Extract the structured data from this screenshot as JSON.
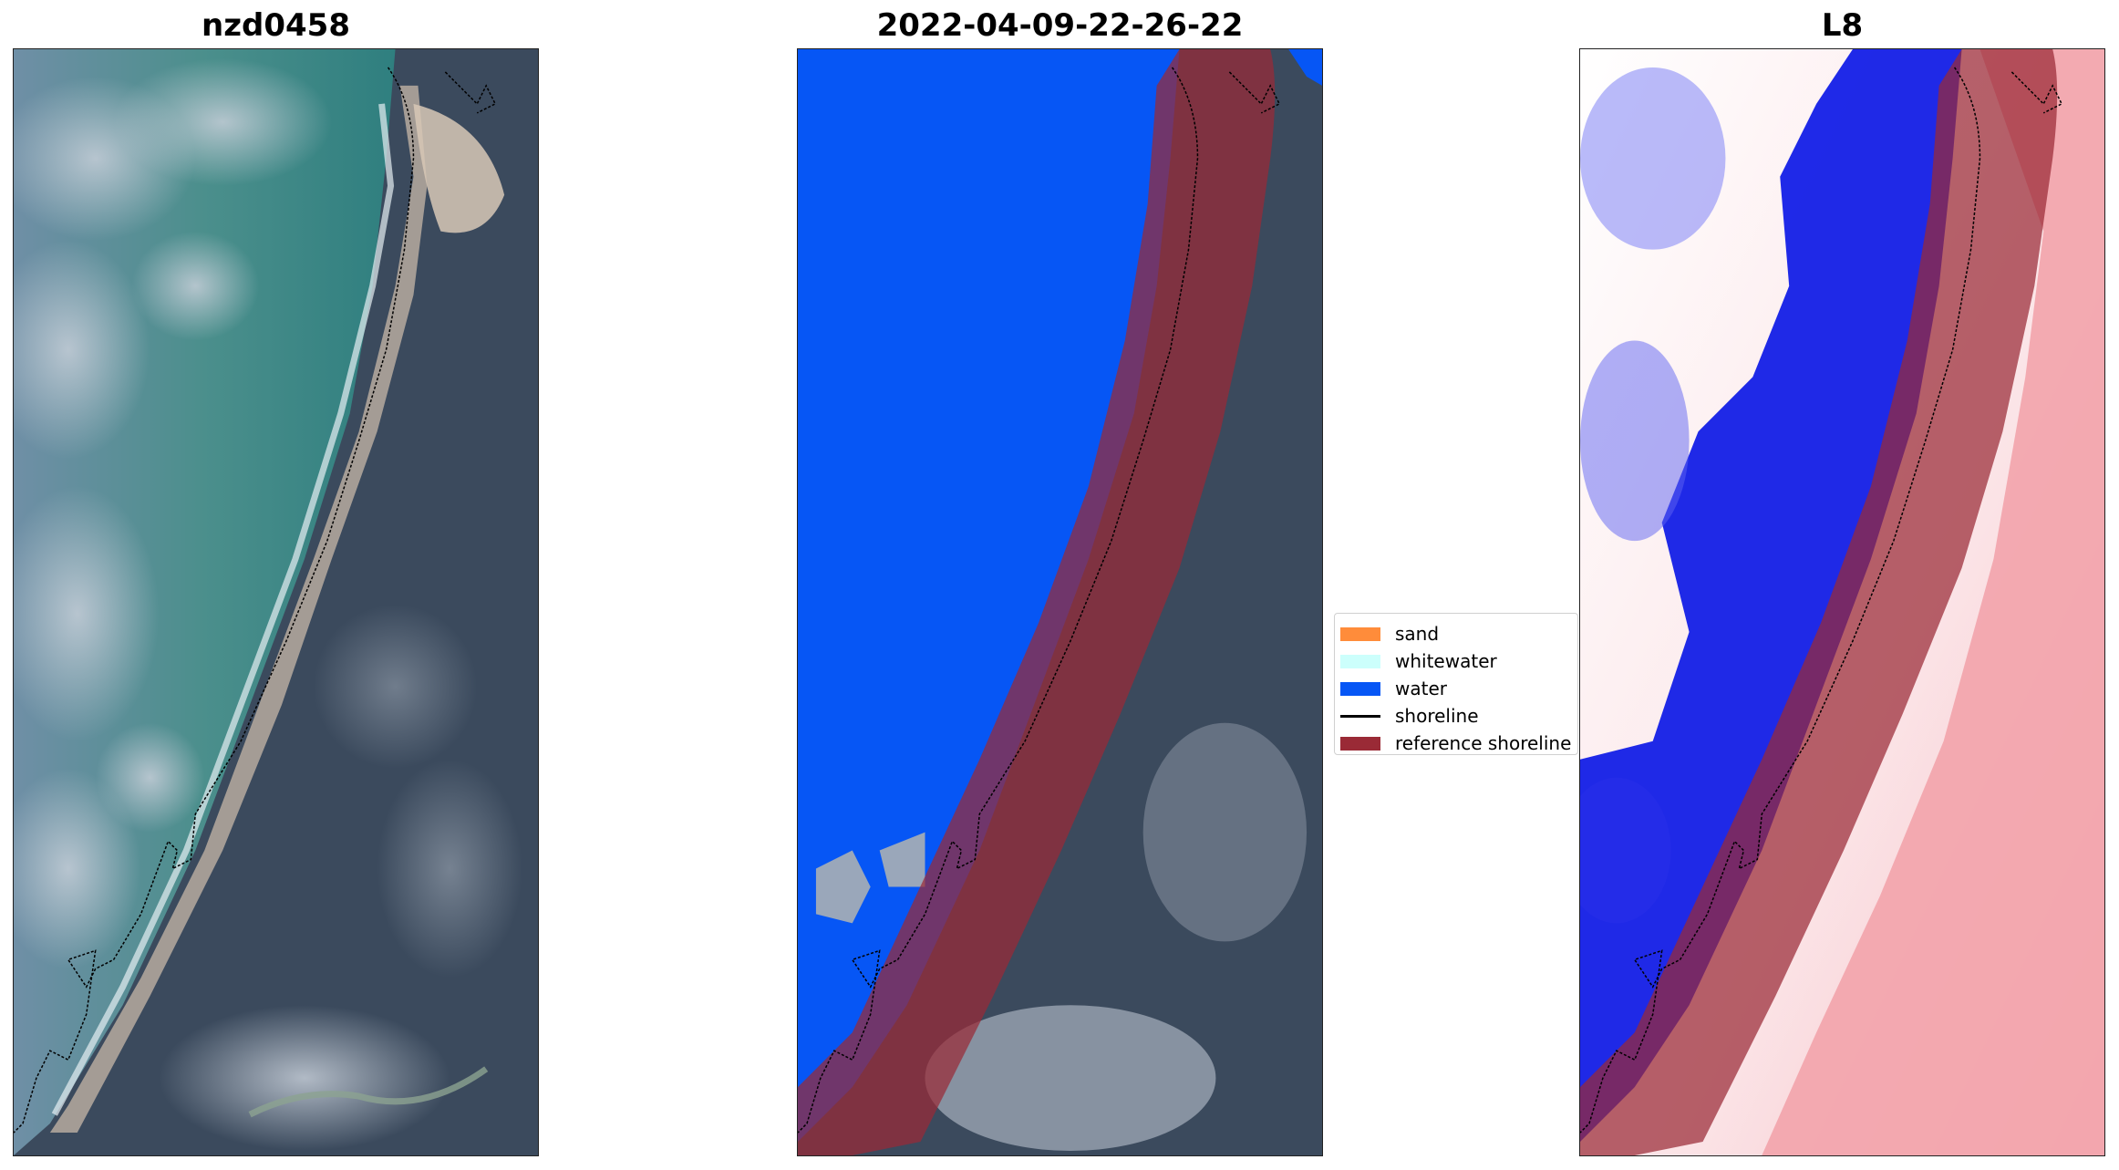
{
  "panels": [
    {
      "title": "nzd0458"
    },
    {
      "title": "2022-04-09-22-26-22"
    },
    {
      "title": "L8"
    }
  ],
  "legend": {
    "items": [
      {
        "label": "sand",
        "color": "#ff8c3a"
      },
      {
        "label": "whitewater",
        "color": "#ccfffc"
      },
      {
        "label": "water",
        "color": "#0656f5"
      },
      {
        "label": "shoreline",
        "color": "#000000"
      },
      {
        "label": "reference shoreline",
        "color": "#9a2a36"
      }
    ]
  },
  "colors": {
    "water": "#0656f5",
    "reference_buffer": "#9a2a36",
    "land": "#3b4b60",
    "cloud": "#c9cdd6",
    "ocean_green": "#3e8a86",
    "index_negative": "#0a10e8",
    "index_positive": "#ee3a4a"
  }
}
